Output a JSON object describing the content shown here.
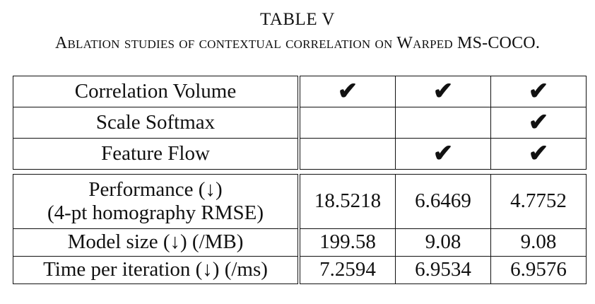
{
  "caption": {
    "label": "TABLE V",
    "title": "Ablation studies of contextual correlation on Warped MS-COCO."
  },
  "check_symbol": "✔",
  "component_rows": [
    {
      "label": "Correlation Volume",
      "cols": [
        "✔",
        "✔",
        "✔"
      ]
    },
    {
      "label": "Scale Softmax",
      "cols": [
        "",
        "",
        "✔"
      ]
    },
    {
      "label": "Feature Flow",
      "cols": [
        "",
        "✔",
        "✔"
      ]
    }
  ],
  "metric_rows": [
    {
      "label_line1": "Performance (↓)",
      "label_line2": "(4-pt homography RMSE)",
      "values": [
        "18.5218",
        "6.6469",
        "4.7752"
      ]
    },
    {
      "label_line1": "Model size (↓) (/MB)",
      "values": [
        "199.58",
        "9.08",
        "9.08"
      ]
    },
    {
      "label_line1": "Time per iteration (↓) (/ms)",
      "values": [
        "7.2594",
        "6.9534",
        "6.9576"
      ]
    }
  ]
}
